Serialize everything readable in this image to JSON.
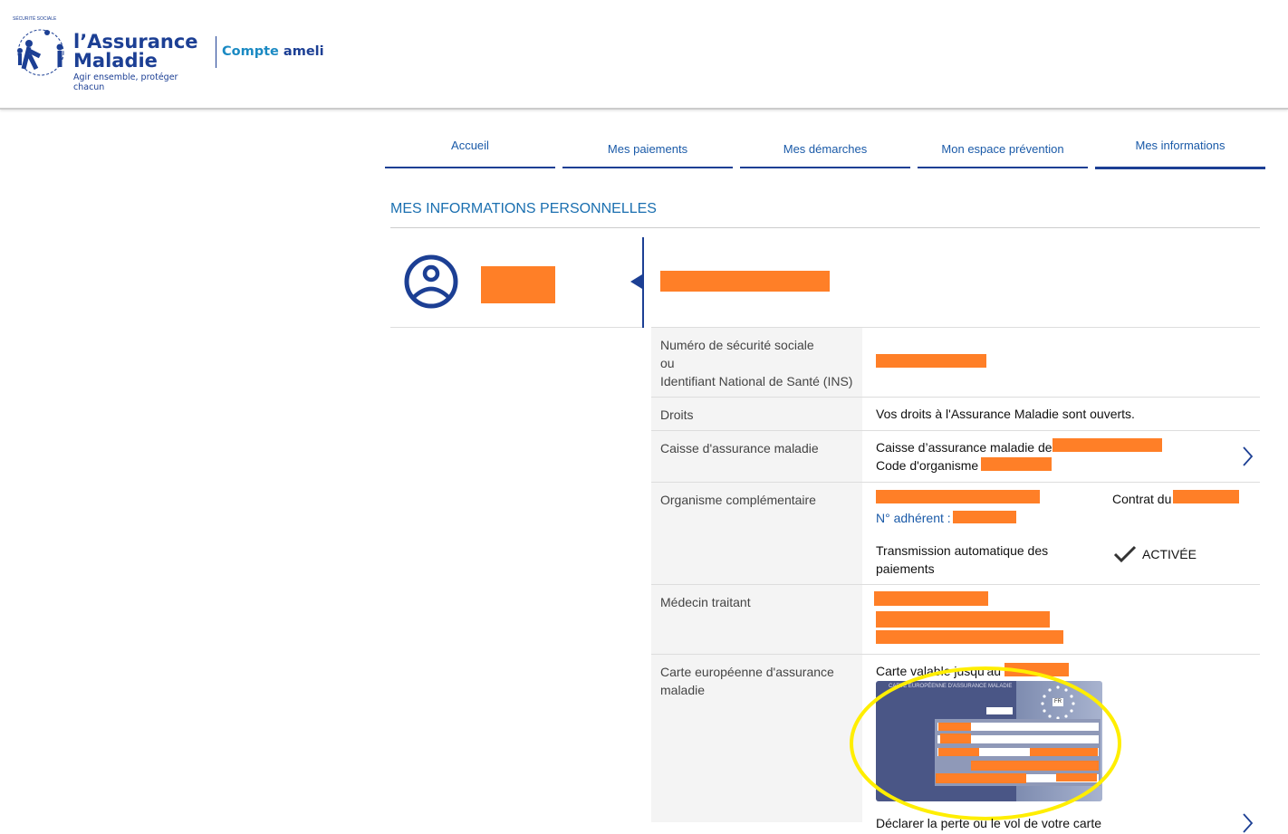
{
  "header": {
    "logo_line1": "l’Assurance",
    "logo_line2": "Maladie",
    "logo_tagline": "Agir ensemble, protéger chacun",
    "logo_seal": "SÉCURITÉ SOCIALE",
    "app_part1": "Compte",
    "app_part2": "ameli"
  },
  "nav": [
    {
      "label": "Accueil"
    },
    {
      "label": "Mes paiements"
    },
    {
      "label": "Mes démarches"
    },
    {
      "label": "Mon espace prévention"
    },
    {
      "label": "Mes informations",
      "active": true
    }
  ],
  "page_title": "MES INFORMATIONS PERSONNELLES",
  "rows": {
    "nss": {
      "label1": "Numéro de sécurité sociale",
      "label2": "ou",
      "label3": "Identifiant National de Santé (INS)"
    },
    "droits": {
      "label": "Droits",
      "value": "Vos droits à l'Assurance Maladie sont ouverts."
    },
    "caisse": {
      "label": "Caisse d'assurance maladie",
      "line1": "Caisse d’assurance maladie de",
      "line2": "Code d'organisme"
    },
    "complementaire": {
      "label": "Organisme complémentaire",
      "contrat": "Contrat du",
      "adherent": "N° adhérent :",
      "transmission": "Transmission automatique des paiements",
      "status": "ACTIVÉE"
    },
    "medecin": {
      "label": "Médecin traitant"
    },
    "carte": {
      "label": "Carte européenne d'assurance maladie",
      "validity": "Carte valable jusqu'au",
      "card_title": "CARTE EUROPÉENNE D'ASSURANCE MALADIE",
      "card_country": "FR",
      "declare_link": "Déclarer la perte ou le vol de votre carte"
    }
  },
  "colors": {
    "brand": "#1c3f94",
    "link": "#1a5aa8",
    "redaction": "#ff7f27",
    "highlight": "#ffee00"
  }
}
